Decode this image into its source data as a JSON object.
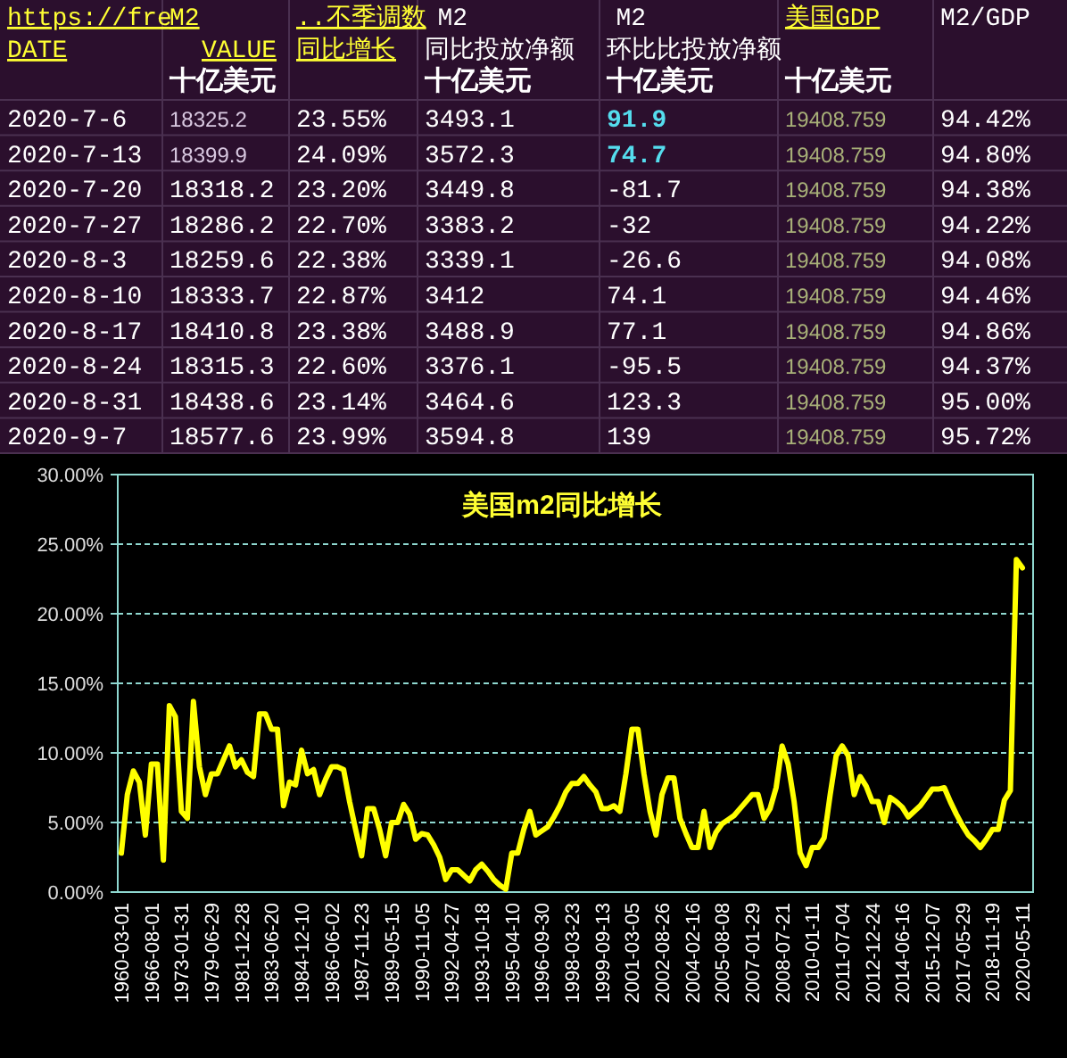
{
  "chart_data": [
    {
      "type": "other",
      "annotations": [
        "https://fre",
        "M2",
        "..不季调数",
        "M2",
        "M2",
        "美国GDP",
        "M2/GDP",
        "DATE",
        "VALUE",
        "同比增长",
        "同比投放净额",
        "环比比投放净额",
        "十亿美元",
        "十亿美元",
        "十亿美元",
        "十亿美元",
        "2020-7-6",
        "18325.2",
        "23.55%",
        "3493.1",
        "91.9",
        "19408.759",
        "94.42%",
        "2020-7-13",
        "18399.9",
        "24.09%",
        "3572.3",
        "74.7",
        "19408.759",
        "94.80%",
        "2020-7-20",
        "18318.2",
        "23.20%",
        "3449.8",
        "-81.7",
        "19408.759",
        "94.38%",
        "2020-7-27",
        "18286.2",
        "22.70%",
        "3383.2",
        "-32",
        "19408.759",
        "94.22%",
        "2020-8-3",
        "18259.6",
        "22.38%",
        "3339.1",
        "-26.6",
        "19408.759",
        "94.08%",
        "2020-8-10",
        "18333.7",
        "22.87%",
        "3412",
        "74.1",
        "19408.759",
        "94.46%",
        "2020-8-17",
        "18410.8",
        "23.38%",
        "3488.9",
        "77.1",
        "19408.759",
        "94.86%",
        "2020-8-24",
        "18315.3",
        "22.60%",
        "3376.1",
        "-95.5",
        "19408.759",
        "94.37%",
        "2020-8-31",
        "18438.6",
        "23.14%",
        "3464.6",
        "123.3",
        "19408.759",
        "95.00%",
        "2020-9-7",
        "18577.6",
        "23.99%",
        "3594.8",
        "139",
        "19408.759",
        "95.72%"
      ]
    },
    {
      "type": "line",
      "title": "美国m2同比增长",
      "categories": [
        "1960-03-01",
        null,
        null,
        null,
        null,
        "1966-08-01",
        null,
        null,
        null,
        null,
        "1973-01-31",
        null,
        null,
        null,
        null,
        "1979-06-29",
        null,
        null,
        null,
        null,
        "1981-12-28",
        null,
        null,
        null,
        null,
        "1983-06-20",
        null,
        null,
        null,
        null,
        "1984-12-10",
        null,
        null,
        null,
        null,
        "1986-06-02",
        null,
        null,
        null,
        null,
        "1987-11-23",
        null,
        null,
        null,
        null,
        "1989-05-15",
        null,
        null,
        null,
        null,
        "1990-11-05",
        null,
        null,
        null,
        null,
        "1992-04-27",
        null,
        null,
        null,
        null,
        "1993-10-18",
        null,
        null,
        null,
        null,
        "1995-04-10",
        null,
        null,
        null,
        null,
        "1996-09-30",
        null,
        null,
        null,
        null,
        "1998-03-23",
        null,
        null,
        null,
        null,
        "1999-09-13",
        null,
        null,
        null,
        null,
        "2001-03-05",
        null,
        null,
        null,
        null,
        "2002-08-26",
        null,
        null,
        null,
        null,
        "2004-02-16",
        null,
        null,
        null,
        null,
        "2005-08-08",
        null,
        null,
        null,
        null,
        "2007-01-29",
        null,
        null,
        null,
        null,
        "2008-07-21",
        null,
        null,
        null,
        null,
        "2010-01-11",
        null,
        null,
        null,
        null,
        "2011-07-04",
        null,
        null,
        null,
        null,
        "2012-12-24",
        null,
        null,
        null,
        null,
        "2014-06-16",
        null,
        null,
        null,
        null,
        "2015-12-07",
        null,
        null,
        null,
        null,
        "2017-05-29",
        null,
        null,
        null,
        null,
        "2018-11-19",
        null,
        null,
        null,
        null,
        "2020-05-11"
      ],
      "series": [
        {
          "color": "#ffff00",
          "values": [
            2.8,
            7.0,
            8.7,
            7.9,
            4.1,
            9.2,
            9.2,
            2.3,
            13.4,
            12.6,
            5.8,
            5.3,
            13.7,
            9.0,
            7.0,
            8.5,
            8.5,
            9.5,
            10.5,
            9.0,
            9.5,
            8.6,
            8.3,
            12.8,
            12.8,
            11.7,
            11.7,
            6.2,
            7.9,
            7.7,
            10.2,
            8.5,
            8.8,
            7.0,
            8.1,
            9.0,
            9.0,
            8.8,
            6.5,
            4.5,
            2.6,
            6.0,
            6.0,
            4.5,
            2.6,
            5.0,
            5.0,
            6.3,
            5.6,
            3.8,
            4.2,
            4.1,
            3.4,
            2.5,
            0.9,
            1.6,
            1.6,
            1.2,
            0.8,
            1.6,
            2.0,
            1.5,
            0.9,
            0.5,
            0.2,
            2.8,
            2.8,
            4.5,
            5.8,
            4.1,
            4.4,
            4.7,
            5.4,
            6.2,
            7.2,
            7.8,
            7.8,
            8.3,
            7.7,
            7.2,
            6.0,
            6.0,
            6.2,
            5.8,
            8.5,
            11.7,
            11.7,
            8.5,
            5.8,
            4.1,
            7.0,
            8.2,
            8.2,
            5.3,
            4.2,
            3.2,
            3.2,
            5.8,
            3.2,
            4.3,
            4.9,
            5.2,
            5.5,
            6.0,
            6.5,
            7.0,
            7.0,
            5.3,
            6.0,
            7.5,
            10.5,
            9.2,
            6.5,
            2.8,
            1.9,
            3.2,
            3.2,
            3.9,
            7.0,
            9.8,
            10.5,
            9.8,
            7.0,
            8.3,
            7.6,
            6.5,
            6.5,
            5.0,
            6.8,
            6.5,
            6.1,
            5.4,
            5.8,
            6.2,
            6.8,
            7.4,
            7.4,
            7.5,
            6.5,
            5.6,
            4.8,
            4.1,
            3.7,
            3.2,
            3.8,
            4.5,
            4.5,
            6.6,
            7.3,
            23.9,
            23.3
          ]
        }
      ],
      "ylim": [
        0,
        30
      ],
      "yticks": [
        {
          "value": 0,
          "label": "0.00%"
        },
        {
          "value": 5,
          "label": "5.00%"
        },
        {
          "value": 10,
          "label": "10.00%"
        },
        {
          "value": 15,
          "label": "15.00%"
        },
        {
          "value": 20,
          "label": "20.00%"
        },
        {
          "value": 25,
          "label": "25.00%"
        },
        {
          "value": 30,
          "label": "30.00%"
        }
      ],
      "grid": "y",
      "line_style": "solid",
      "marker": "none"
    }
  ]
}
